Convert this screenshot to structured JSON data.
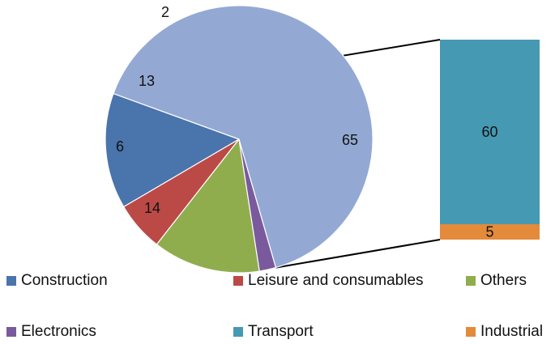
{
  "chart_data": {
    "type": "bar-of-pie",
    "pie": {
      "slices": [
        {
          "label": "Construction",
          "value": 14,
          "color": "#4a74ac"
        },
        {
          "label": "Leisure and consumables",
          "value": 6,
          "color": "#bb4a47"
        },
        {
          "label": "Others",
          "value": 13,
          "color": "#90ad4e"
        },
        {
          "label": "Electronics",
          "value": 2,
          "color": "#7a5a9c"
        },
        {
          "label": "",
          "value": 65,
          "color": "#93a9d3"
        }
      ]
    },
    "bar": {
      "segments": [
        {
          "label": "Transport",
          "value": 60,
          "color": "#4599b2"
        },
        {
          "label": "Industrial",
          "value": 5,
          "color": "#e48a3b"
        }
      ]
    },
    "legend": [
      {
        "label": "Construction",
        "color": "#4a74ac"
      },
      {
        "label": "Leisure and consumables",
        "color": "#bb4a47"
      },
      {
        "label": "Others",
        "color": "#90ad4e"
      },
      {
        "label": "Electronics",
        "color": "#7a5a9c"
      },
      {
        "label": "Transport",
        "color": "#4599b2"
      },
      {
        "label": "Industrial",
        "color": "#e48a3b"
      }
    ],
    "legend_position": "bottom"
  }
}
